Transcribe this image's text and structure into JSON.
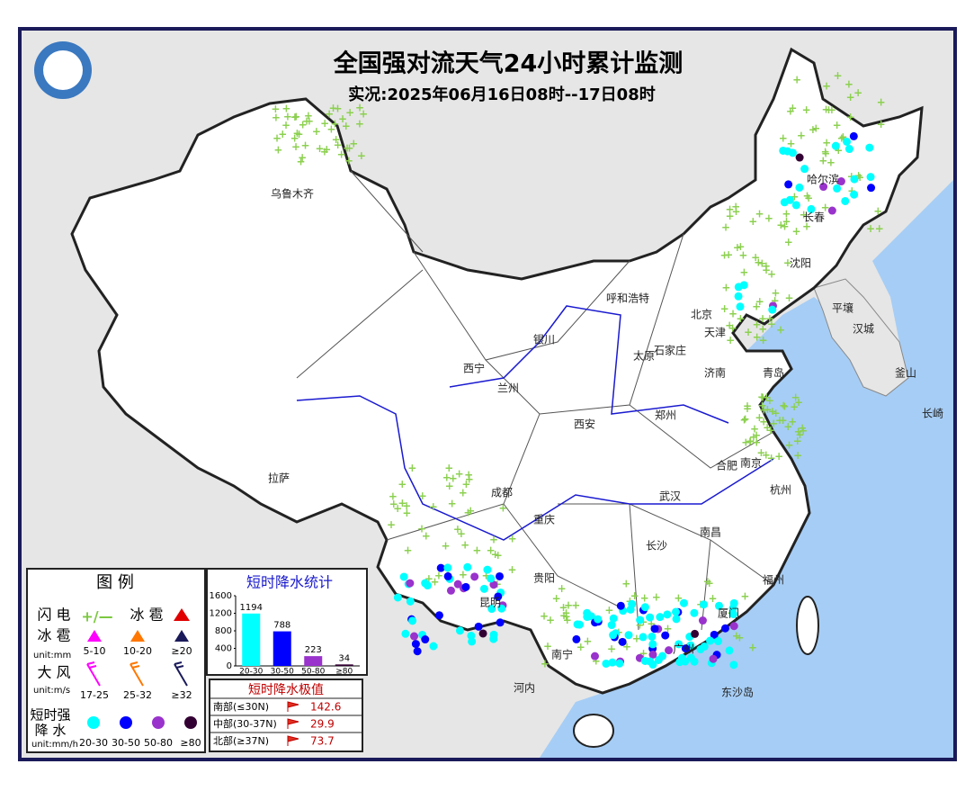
{
  "header": {
    "title": "全国强对流天气24小时累计监测",
    "subtitle": "实况:2025年06月16日08时--17日08时"
  },
  "cities": [
    "乌鲁木齐",
    "拉萨",
    "西宁",
    "兰州",
    "银川",
    "呼和浩特",
    "太原",
    "石家庄",
    "北京",
    "天津",
    "济南",
    "青岛",
    "郑州",
    "西安",
    "成都",
    "重庆",
    "贵阳",
    "昆明",
    "长沙",
    "武汉",
    "南昌",
    "合肥",
    "南京",
    "杭州",
    "福州",
    "广州",
    "南宁",
    "长春",
    "沈阳",
    "哈尔滨",
    "平壤",
    "汉城",
    "釜山",
    "长崎",
    "河内",
    "东沙岛",
    "厦门"
  ],
  "legend": {
    "title": "图 例",
    "lightning": {
      "label": "闪 电"
    },
    "hail_marker": {
      "label": "冰 雹"
    },
    "hail": {
      "label": "冰 雹",
      "unit": "unit:mm",
      "classes": [
        "5-10",
        "10-20",
        "≥20"
      ]
    },
    "wind": {
      "label": "大 风",
      "unit": "unit:m/s",
      "classes": [
        "17-25",
        "25-32",
        "≥32"
      ]
    },
    "rain": {
      "label_lines": [
        "短时强",
        "降 水"
      ],
      "unit": "unit:mm/h",
      "classes": [
        "20-30",
        "30-50",
        "50-80",
        "≥80"
      ]
    }
  },
  "chart_data": {
    "type": "bar",
    "title": "短时降水统计",
    "categories": [
      "20-30",
      "30-50",
      "50-80",
      "≥80"
    ],
    "values": [
      1194,
      788,
      223,
      34
    ],
    "colors": [
      "#00ffff",
      "#0000ff",
      "#9933cc",
      "#330033"
    ],
    "ylim": [
      0,
      1600
    ],
    "yticks": [
      0,
      400,
      800,
      1200,
      1600
    ]
  },
  "extremes": {
    "title": "短时降水极值",
    "rows": [
      [
        "南部(≤30N)",
        142.6
      ],
      [
        "中部(30-37N)",
        29.9
      ],
      [
        "北部(≥37N)",
        73.7
      ]
    ]
  }
}
